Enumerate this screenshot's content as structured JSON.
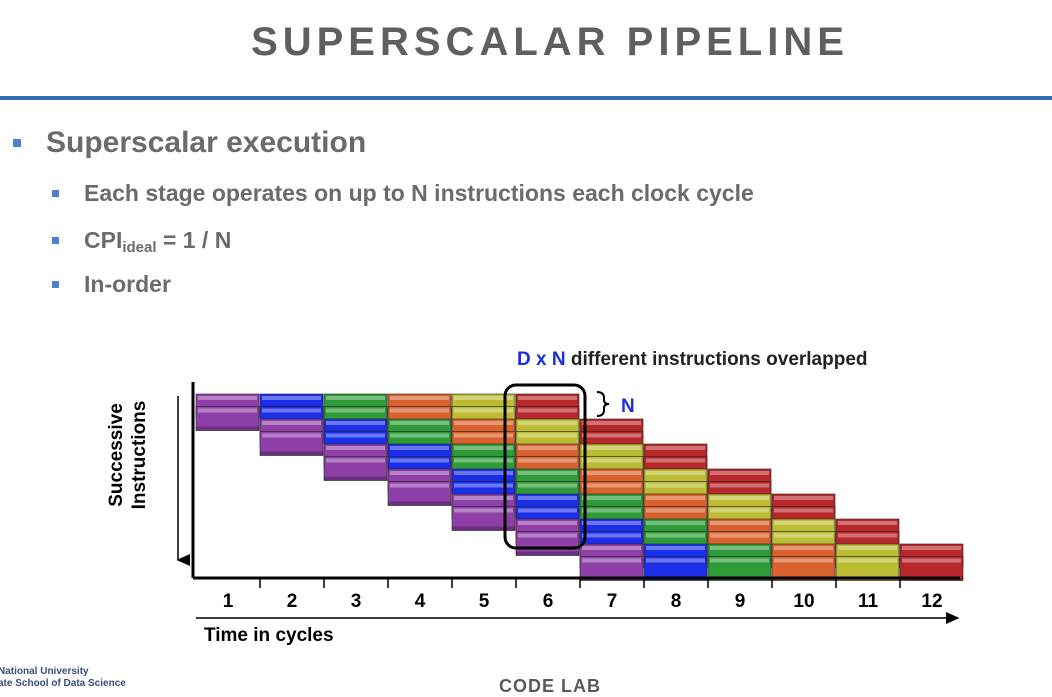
{
  "slide": {
    "title": "SUPERSCALAR PIPELINE",
    "bullet_main": "Superscalar execution",
    "bullets": [
      {
        "text": "Each stage operates on up to N instructions each clock cycle"
      },
      {
        "cpi": "CPI",
        "sub": "ideal",
        "rest": " = 1 / N"
      },
      {
        "text": "In-order"
      }
    ]
  },
  "diagram": {
    "annotation_bold": "D x N",
    "annotation_rest": " different instructions overlapped",
    "brace_label": "N",
    "y_label_line1": "Successive",
    "y_label_line2": "Instructions",
    "x_label": "Time in cycles",
    "highlighted_cycle": "6"
  },
  "chart_data": {
    "type": "table",
    "x": [
      "1",
      "2",
      "3",
      "4",
      "5",
      "6",
      "7",
      "8",
      "9",
      "10",
      "11",
      "12"
    ],
    "stage_colors": [
      "#8e3fa8",
      "#1c2fe8",
      "#2e9a38",
      "#d8612d",
      "#bcbc33",
      "#b8282a"
    ],
    "issue_width": 2,
    "instructions": 14,
    "xlabel": "Time in cycles",
    "ylabel": "Successive Instructions"
  },
  "footer": {
    "org_line1": "National University",
    "org_line2": "ate School of Data Science",
    "center": "CODE LAB"
  }
}
